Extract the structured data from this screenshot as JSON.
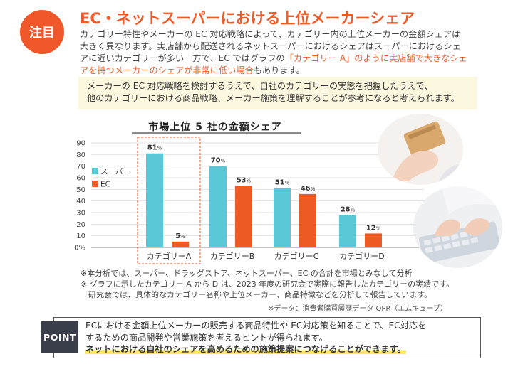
{
  "badge": {
    "label": "注目"
  },
  "title": "EC・ネットスーパーにおける上位メーカーシェア",
  "intro": {
    "lines": [
      "カテゴリー特性やメーカーの EC 対応戦略によって、カテゴリー内の上位メーカーの金額シェアは",
      "大きく異なります。実店舗から配送されるネットスーパーにおけるシェアはスーパーにおけるシェ",
      "アに近いカテゴリーが多い一方で、EC ではグラフの"
    ],
    "highlight_1": "「カテゴリー A」のように実店舗で大きなシェ",
    "highlight_2": "アを持つメーカーのシェアが非常に低い場合",
    "tail": "もあります。"
  },
  "infobox": {
    "line1": "メーカーの EC 対応戦略を検討するうえで、自社のカテゴリーの実態を把握したうえで、",
    "line2": "他のカテゴリーにおける商品戦略、メーカー施策を理解することが参考になると考えられます。"
  },
  "chart_data": {
    "type": "bar",
    "title": "市場上位 5 社の金額シェア",
    "categories": [
      "カテゴリーA",
      "カテゴリーB",
      "カテゴリーC",
      "カテゴリーD"
    ],
    "series": [
      {
        "name": "スーパー",
        "values": [
          81,
          70,
          51,
          28
        ],
        "color": "#5bc8d8"
      },
      {
        "name": "EC",
        "values": [
          5,
          53,
          46,
          12
        ],
        "color": "#ee5a24"
      }
    ],
    "y_ticks": [
      "0%",
      "10",
      "20",
      "30",
      "40",
      "50",
      "60",
      "70",
      "80",
      "90"
    ],
    "ylim": [
      0,
      90
    ],
    "value_suffix": "%",
    "highlight_category": "カテゴリーA",
    "legend_position": "left"
  },
  "notes": {
    "line1": "※本分析では、スーパー、ドラッグストア、ネットスーパー、EC の合計を市場とみなして分析",
    "line2": "※ グラフに示したカテゴリー A から D は、2023 年度の研究会で実際に報告したカテゴリーの実績です。",
    "line3": "研究会では、具体的なカテゴリー名称や上位メーカー、商品特徴などを分析して報告しています。",
    "source": "※データ：消費者購買履歴データ QPR（エムキューブ）"
  },
  "point": {
    "label": "POINT",
    "line1": "ECにおける金額上位メーカーの販売する商品特性や EC対応策を知ることで、EC対応を",
    "line2": "するための商品開発や営業施策を考えるヒントが得られます。",
    "line3": "ネットにおける自社のシェアを高めるための施策提案につなげることができます。"
  },
  "colors": {
    "accent": "#ef5a28",
    "super": "#5bc8d8",
    "ec": "#ee5a24",
    "point_bg": "#3a3d4a",
    "highlight": "#fbe75a"
  }
}
